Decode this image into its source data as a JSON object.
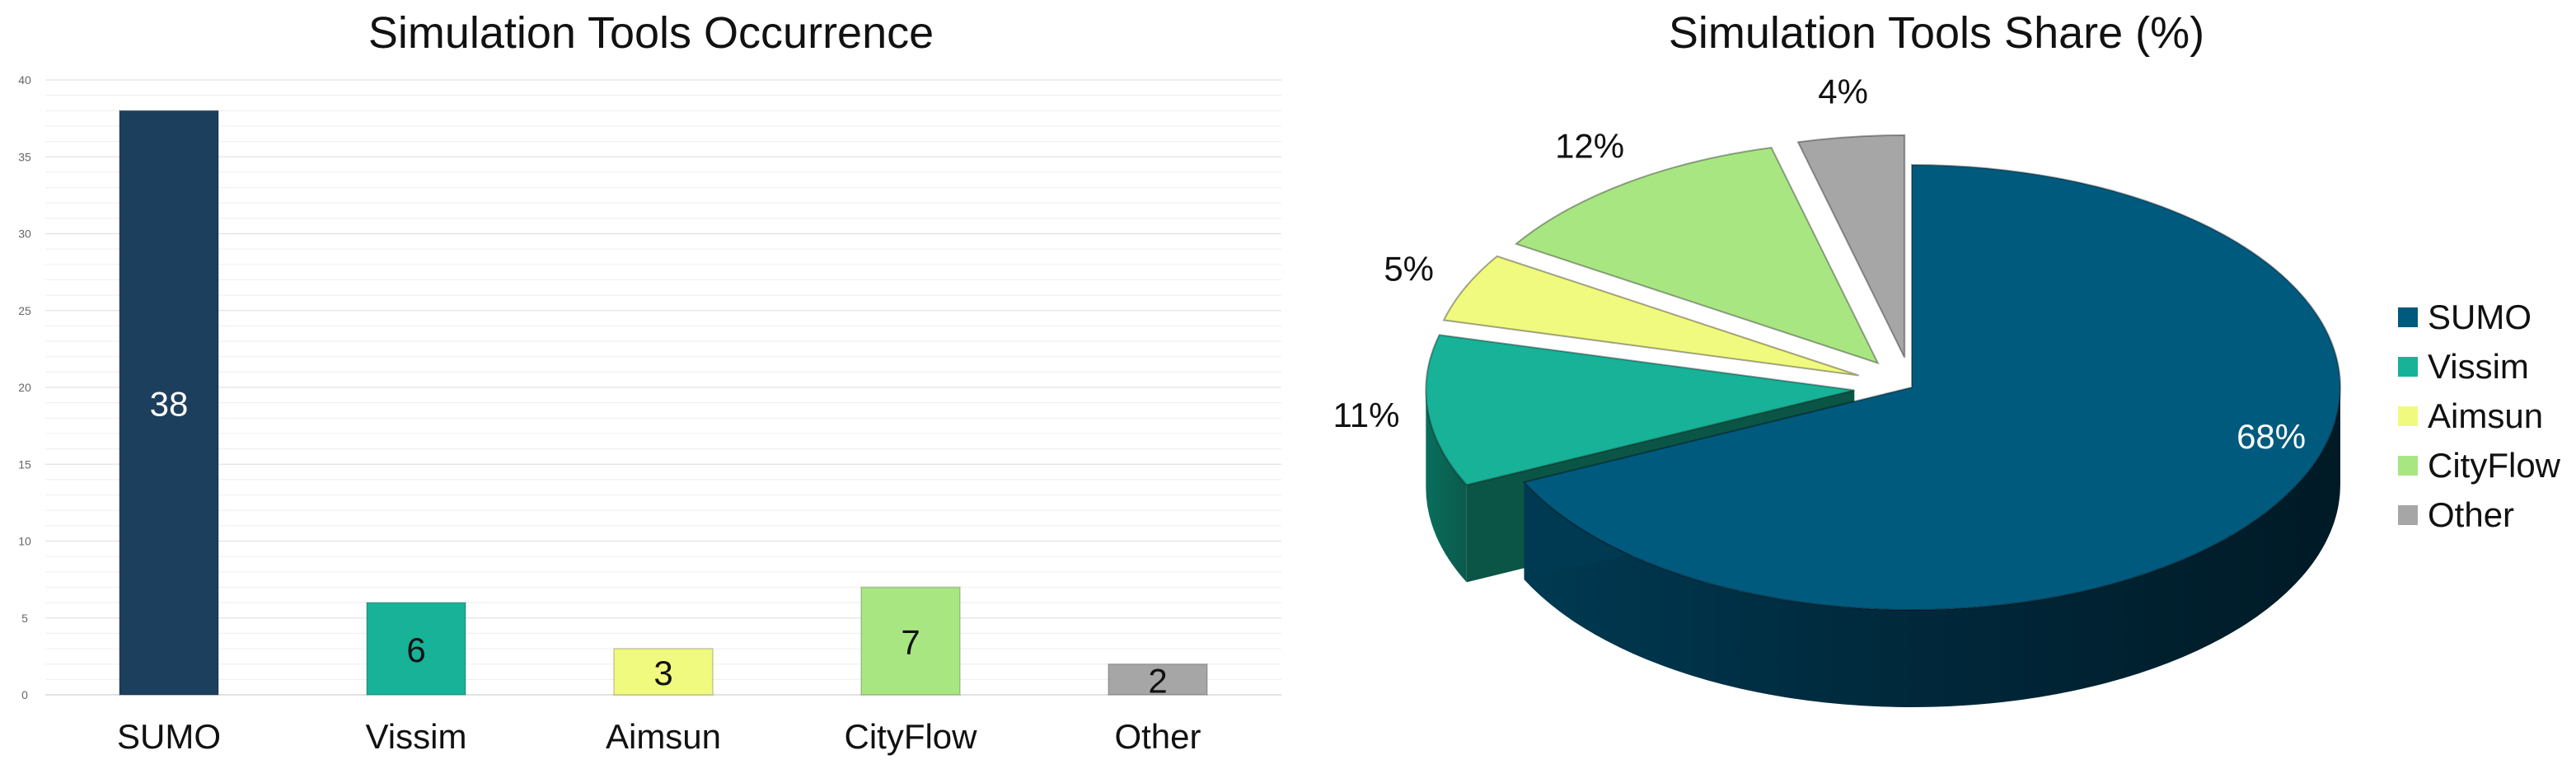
{
  "chart_data": [
    {
      "type": "bar",
      "title": "Simulation Tools Occurrence",
      "categories": [
        "SUMO",
        "Vissim",
        "Aimsun",
        "CityFlow",
        "Other"
      ],
      "values": [
        38,
        6,
        3,
        7,
        2
      ],
      "data_labels": [
        "38",
        "6",
        "3",
        "7",
        "2"
      ],
      "colors": [
        "#1d3f5e",
        "#17b297",
        "#f0fa7e",
        "#a8e682",
        "#a6a6a6"
      ],
      "label_colors": [
        "#ffffff",
        "#111111",
        "#111111",
        "#111111",
        "#111111"
      ],
      "ylim": [
        0,
        40
      ],
      "y_ticks": [
        "0",
        "5",
        "10",
        "15",
        "20",
        "25",
        "30",
        "35",
        "40"
      ],
      "grid": true,
      "legend": "none"
    },
    {
      "type": "pie",
      "title": "Simulation Tools Share (%)",
      "labels": [
        "SUMO",
        "Vissim",
        "Aimsun",
        "CityFlow",
        "Other"
      ],
      "values": [
        68,
        11,
        5,
        12,
        4
      ],
      "data_labels": [
        "68%",
        "11%",
        "5%",
        "12%",
        "4%"
      ],
      "colors": [
        "#005a7d",
        "#17b297",
        "#f0fa7e",
        "#a8e682",
        "#a6a6a6"
      ],
      "legend": "right"
    }
  ]
}
